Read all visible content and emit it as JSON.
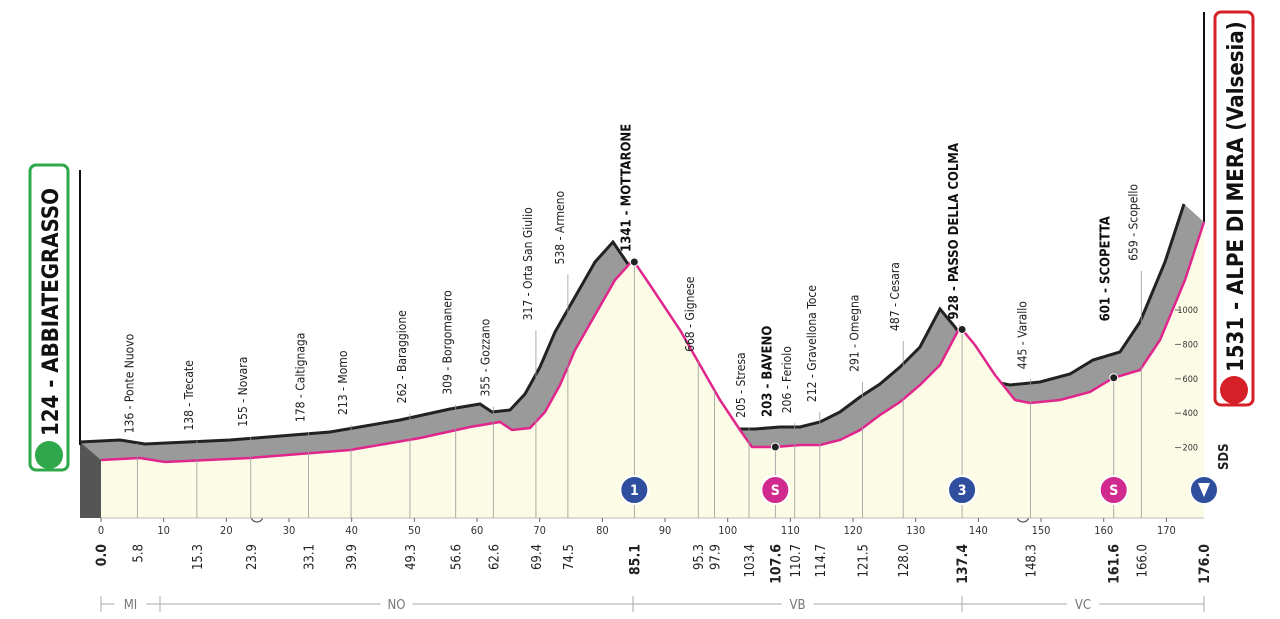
{
  "start": "124 - ABBIATEGRASSO",
  "finish": "1531 - ALPE DI MERA (Valsesia)",
  "logo": "SDS",
  "km_axis": [
    "0",
    "10",
    "20",
    "30",
    "40",
    "50",
    "60",
    "70",
    "80",
    "90",
    "100",
    "110",
    "120",
    "130",
    "140",
    "150",
    "160",
    "170"
  ],
  "altitude_axis": [
    "200",
    "400",
    "600",
    "800",
    "1000"
  ],
  "km_marks": [
    {
      "km": "0.0"
    },
    {
      "km": "5.8",
      "place": "136 - Ponte Nuovo"
    },
    {
      "km": "15.3",
      "place": "138 - Trecate"
    },
    {
      "km": "23.9",
      "place": "155 - Novara"
    },
    {
      "km": "33.1",
      "place": "178 - Caltignaga"
    },
    {
      "km": "39.9",
      "place": "213 - Momo"
    },
    {
      "km": "49.3",
      "place": "262 - Baraggione"
    },
    {
      "km": "56.6",
      "place": "309 - Borgomanero"
    },
    {
      "km": "62.6",
      "place": "355 - Gozzano"
    },
    {
      "km": "69.4",
      "place": "317 - Orta San Giulio"
    },
    {
      "km": "74.5",
      "place": "538 - Armeno"
    },
    {
      "km": "85.1",
      "place": "1341 - MOTTARONE",
      "badge": "1"
    },
    {
      "km": "95.3",
      "place": "668 - Gignese"
    },
    {
      "km": "97.9"
    },
    {
      "km": "103.4",
      "place": "205 - Stresa"
    },
    {
      "km": "107.6",
      "place": "203 - BAVENO",
      "badge": "S"
    },
    {
      "km": "110.7",
      "place": "206 - Feriolo"
    },
    {
      "km": "114.7",
      "place": "212 - Gravellona Toce"
    },
    {
      "km": "121.5",
      "place": "291 - Omegna"
    },
    {
      "km": "128.0",
      "place": "487 - Cesara"
    },
    {
      "km": "137.4",
      "place": "928 - PASSO DELLA COLMA",
      "badge": "3"
    },
    {
      "km": "148.3",
      "place": "445 - Varallo"
    },
    {
      "km": "161.6",
      "place": "601 - SCOPETTA",
      "badge": "S"
    },
    {
      "km": "166.0",
      "place": "659 - Scopello"
    },
    {
      "km": "176.0"
    }
  ],
  "regions": [
    "MI",
    "NO",
    "VB",
    "VC"
  ]
}
